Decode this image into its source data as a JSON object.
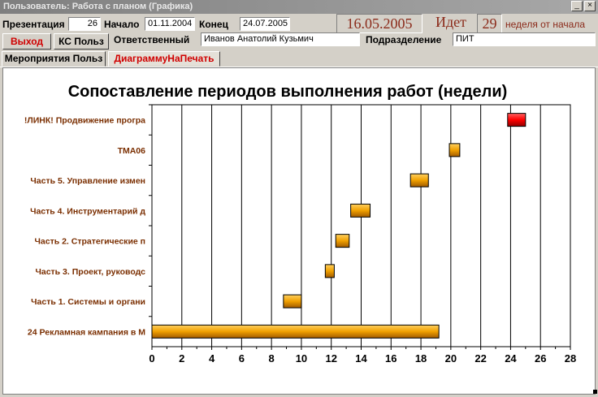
{
  "window": {
    "title": "Пользователь: Работа с планом (Графика)"
  },
  "header": {
    "presentation_label": "Презентация",
    "presentation_value": "26",
    "start_label": "Начало",
    "start_value": "01.11.2004",
    "end_label": "Конец",
    "end_value": "24.07.2005",
    "current_date": "16.05.2005",
    "going_label": "Идет",
    "week_value": "29",
    "week_suffix": "неделя от начала",
    "responsible_label": "Ответственный",
    "responsible_value": "Иванов Анатолий Кузьмич",
    "department_label": "Подразделение",
    "department_value": "ПИТ"
  },
  "buttons": {
    "exit_label": "Выход",
    "ks_label": "КС Польз"
  },
  "tabs": [
    {
      "label": "Мероприятия Польз"
    },
    {
      "label": "ДиаграммуНаПечать"
    }
  ],
  "colors": {
    "accent_red": "#d00000",
    "bar_orange": "#f0a000",
    "bar_red": "#ff0000",
    "label_brown": "#7a2e00"
  },
  "chart_data": {
    "type": "gantt",
    "title": "Сопоставление периодов выполнения работ  (недели)",
    "xlim": [
      0,
      28
    ],
    "xticks": [
      0,
      2,
      4,
      6,
      8,
      10,
      12,
      14,
      16,
      18,
      20,
      22,
      24,
      26,
      28
    ],
    "grid": "vertical",
    "tasks": [
      {
        "label": "!ЛИНК! Продвижение програ",
        "start": 23.8,
        "end": 25.0,
        "highlight": true
      },
      {
        "label": "ТМА06",
        "start": 19.9,
        "end": 20.6,
        "highlight": false
      },
      {
        "label": "Часть 5. Управление измен",
        "start": 17.3,
        "end": 18.5,
        "highlight": false
      },
      {
        "label": "Часть 4. Инструментарий д",
        "start": 13.3,
        "end": 14.6,
        "highlight": false
      },
      {
        "label": "Часть 2. Стратегические п",
        "start": 12.3,
        "end": 13.2,
        "highlight": false
      },
      {
        "label": "Часть 3. Проект, руководс",
        "start": 11.6,
        "end": 12.2,
        "highlight": false
      },
      {
        "label": "Часть 1. Системы и органи",
        "start": 8.8,
        "end": 10.0,
        "highlight": false
      },
      {
        "label": "24 Рекламная кампания в М",
        "start": 0.0,
        "end": 19.2,
        "highlight": false
      }
    ]
  }
}
